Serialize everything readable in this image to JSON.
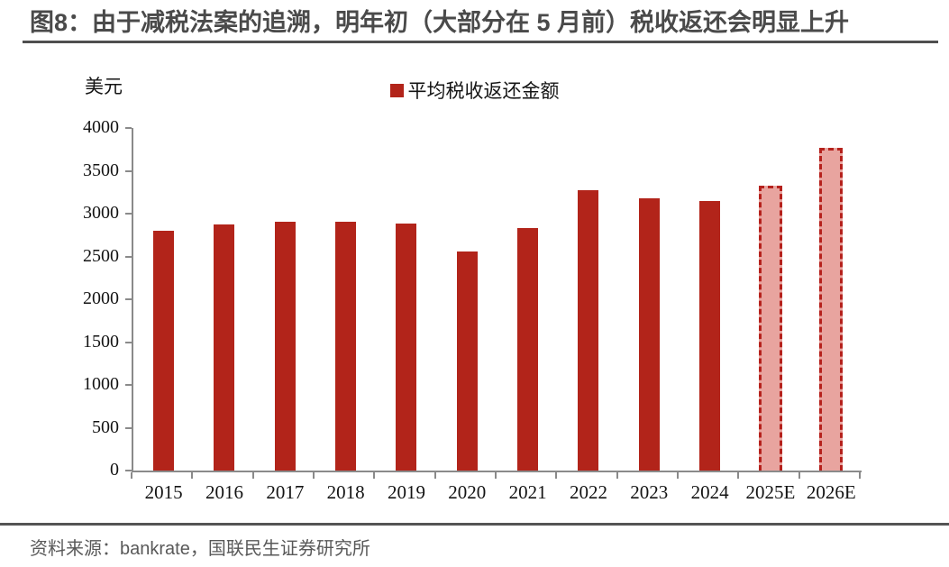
{
  "title": "图8：由于减税法案的追溯，明年初（大部分在 5 月前）税收返还会明显上升",
  "axis": {
    "unit_label": "美元"
  },
  "legend": {
    "label": "平均税收返还金额"
  },
  "footer": {
    "source": "资料来源：bankrate，国联民生证券研究所"
  },
  "colors": {
    "bar": "#b2241a",
    "estimate_fill": "#e8a49f",
    "estimate_border": "#b5211c",
    "axis": "#8a8a8a",
    "title_text": "#4a4a4a",
    "rule": "#4f4f4f"
  },
  "chart_data": {
    "type": "bar",
    "title": "图8：由于减税法案的追溯，明年初（大部分在 5 月前）税收返还会明显上升",
    "categories": [
      "2015",
      "2016",
      "2017",
      "2018",
      "2019",
      "2020",
      "2021",
      "2022",
      "2023",
      "2024",
      "2025E",
      "2026E"
    ],
    "series": [
      {
        "name": "平均税收返还金额",
        "values": [
          2800,
          2870,
          2900,
          2910,
          2880,
          2560,
          2830,
          3270,
          3180,
          3150,
          3290,
          3740
        ]
      }
    ],
    "estimated_categories": [
      "2025E",
      "2026E"
    ],
    "xlabel": "",
    "ylabel": "美元",
    "ylim": [
      0,
      4000
    ],
    "ytick_step": 500,
    "grid": false,
    "legend_position": "top-center",
    "source": "资料来源：bankrate，国联民生证券研究所"
  }
}
